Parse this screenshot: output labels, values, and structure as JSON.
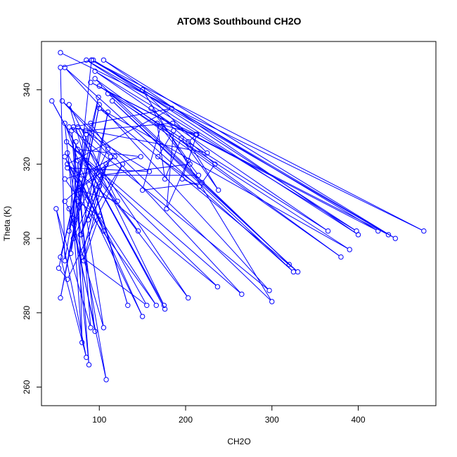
{
  "chart_data": {
    "type": "scatter",
    "title": "ATOM3 Southbound CH2O",
    "xlabel": "CH2O",
    "ylabel": "Theta (K)",
    "xlim": [
      33,
      490
    ],
    "ylim": [
      255,
      353
    ],
    "x_ticks": [
      "100",
      "200",
      "300",
      "400"
    ],
    "x_tick_values": [
      100,
      200,
      300,
      400
    ],
    "y_ticks": [
      "260",
      "280",
      "300",
      "320",
      "340"
    ],
    "y_tick_values": [
      260,
      280,
      300,
      320,
      340
    ],
    "grid": false,
    "legend": "none",
    "color": "#0000ff",
    "mode": "lines+markers",
    "series": [
      {
        "points": [
          [
            55,
            350
          ],
          [
            476,
            302
          ],
          [
            91,
            348
          ],
          [
            443,
            300
          ],
          [
            105,
            348
          ],
          [
            400,
            301
          ],
          [
            85,
            348
          ],
          [
            435,
            301
          ],
          [
            90,
            342
          ],
          [
            423,
            302
          ],
          [
            93,
            348
          ],
          [
            398,
            302
          ],
          [
            95,
            345
          ],
          [
            365,
            302
          ],
          [
            100,
            341
          ],
          [
            380,
            295
          ],
          [
            95,
            343
          ],
          [
            320,
            293
          ],
          [
            110,
            339
          ],
          [
            390,
            297
          ],
          [
            100,
            335
          ],
          [
            330,
            291
          ],
          [
            115,
            337
          ],
          [
            325,
            291
          ],
          [
            60,
            346
          ],
          [
            297,
            286
          ],
          [
            65,
            330
          ],
          [
            225,
            323
          ],
          [
            150,
            340
          ],
          [
            300,
            283
          ],
          [
            57,
            337
          ],
          [
            265,
            285
          ],
          [
            62,
            326
          ],
          [
            237,
            287
          ],
          [
            63,
            320
          ],
          [
            184,
            335
          ],
          [
            70,
            330
          ],
          [
            203,
            284
          ],
          [
            85,
            320
          ],
          [
            176,
            281
          ],
          [
            45,
            337
          ],
          [
            175,
            282
          ],
          [
            75,
            330
          ],
          [
            158,
            318
          ],
          [
            63,
            319
          ],
          [
            166,
            282
          ],
          [
            60,
            316
          ],
          [
            148,
            322
          ],
          [
            75,
            324
          ],
          [
            145,
            302
          ],
          [
            85,
            321
          ],
          [
            133,
            282
          ],
          [
            65,
            336
          ],
          [
            121,
            310
          ],
          [
            75,
            313
          ],
          [
            104,
            318
          ],
          [
            80,
            295
          ],
          [
            155,
            282
          ],
          [
            60,
            322
          ],
          [
            150,
            279
          ],
          [
            78,
            316
          ],
          [
            105,
            276
          ],
          [
            65,
            308
          ],
          [
            108,
            262
          ],
          [
            63,
            323
          ],
          [
            105,
            302
          ],
          [
            60,
            331
          ],
          [
            88,
            266
          ],
          [
            68,
            329
          ],
          [
            95,
            275
          ],
          [
            70,
            304
          ],
          [
            80,
            272
          ],
          [
            75,
            321
          ],
          [
            90,
            276
          ],
          [
            50,
            308
          ],
          [
            85,
            268
          ],
          [
            55,
            295
          ],
          [
            99,
            338
          ],
          [
            55,
            284
          ],
          [
            100,
            336
          ],
          [
            67,
            296
          ],
          [
            91,
            348
          ],
          [
            55,
            346
          ],
          [
            60,
            294
          ],
          [
            85,
            328
          ],
          [
            65,
            302
          ],
          [
            73,
            326
          ],
          [
            70,
            300
          ],
          [
            108,
            320
          ],
          [
            82,
            294
          ],
          [
            100,
            306
          ],
          [
            75,
            310
          ],
          [
            87,
            318
          ],
          [
            118,
            322
          ],
          [
            60,
            310
          ],
          [
            72,
            305
          ],
          [
            110,
            324
          ],
          [
            90,
            331
          ],
          [
            53,
            292
          ],
          [
            63,
            289
          ],
          [
            127,
            320
          ],
          [
            87,
            305
          ],
          [
            110,
            334
          ],
          [
            79,
            301
          ],
          [
            100,
            314
          ],
          [
            78,
            301
          ],
          [
            113,
            322
          ],
          [
            84,
            329
          ],
          [
            185,
            331
          ],
          [
            212,
            328
          ],
          [
            167,
            331
          ],
          [
            176,
            316
          ],
          [
            195,
            327
          ],
          [
            238,
            313
          ],
          [
            203,
            326
          ],
          [
            213,
            328
          ],
          [
            196,
            316
          ],
          [
            216,
            314
          ],
          [
            168,
            322
          ],
          [
            186,
            329
          ],
          [
            178,
            308
          ],
          [
            203,
            321
          ],
          [
            160,
            335
          ],
          [
            234,
            320
          ],
          [
            219,
            315
          ],
          [
            150,
            313
          ],
          [
            171,
            330
          ],
          [
            215,
            317
          ],
          [
            101,
            317
          ],
          [
            205,
            320
          ]
        ]
      }
    ]
  }
}
